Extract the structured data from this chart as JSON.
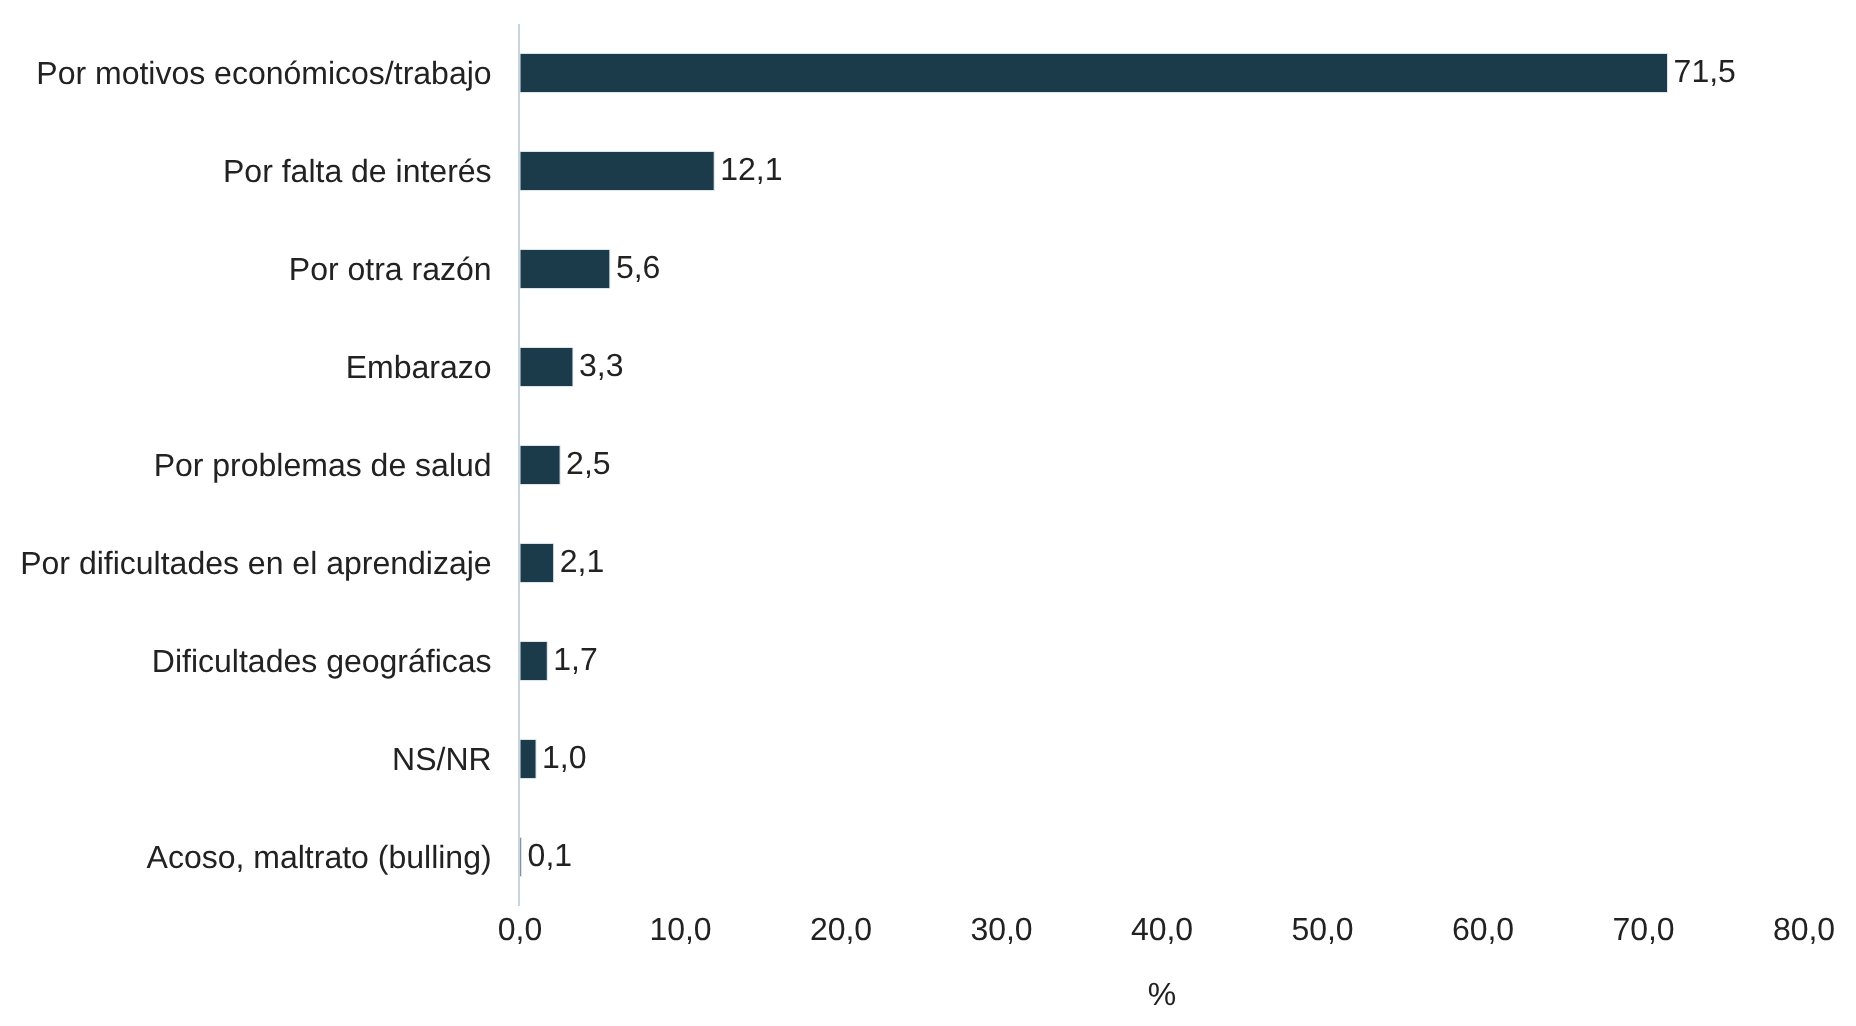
{
  "chart_data": {
    "type": "bar",
    "orientation": "horizontal",
    "xlabel": "%",
    "categories": [
      "Por motivos económicos/trabajo",
      "Por falta de interés",
      "Por otra razón",
      "Embarazo",
      "Por problemas de salud",
      "Por dificultades en el aprendizaje",
      "Dificultades geográficas",
      "NS/NR",
      "Acoso, maltrato (bulling)"
    ],
    "values": [
      71.5,
      12.1,
      5.6,
      3.3,
      2.5,
      2.1,
      1.7,
      1.0,
      0.1
    ],
    "value_labels": [
      "71,5",
      "12,1",
      "5,6",
      "3,3",
      "2,5",
      "2,1",
      "1,7",
      "1,0",
      "0,1"
    ],
    "color": "#1b3a4a",
    "xlim": [
      0,
      80
    ],
    "xticks": [
      {
        "value": 0,
        "label": "0,0"
      },
      {
        "value": 10,
        "label": "10,0"
      },
      {
        "value": 20,
        "label": "20,0"
      },
      {
        "value": 30,
        "label": "30,0"
      },
      {
        "value": 40,
        "label": "40,0"
      },
      {
        "value": 50,
        "label": "50,0"
      },
      {
        "value": 60,
        "label": "60,0"
      },
      {
        "value": 70,
        "label": "70,0"
      },
      {
        "value": 80,
        "label": "80,0"
      }
    ],
    "legend": false
  }
}
